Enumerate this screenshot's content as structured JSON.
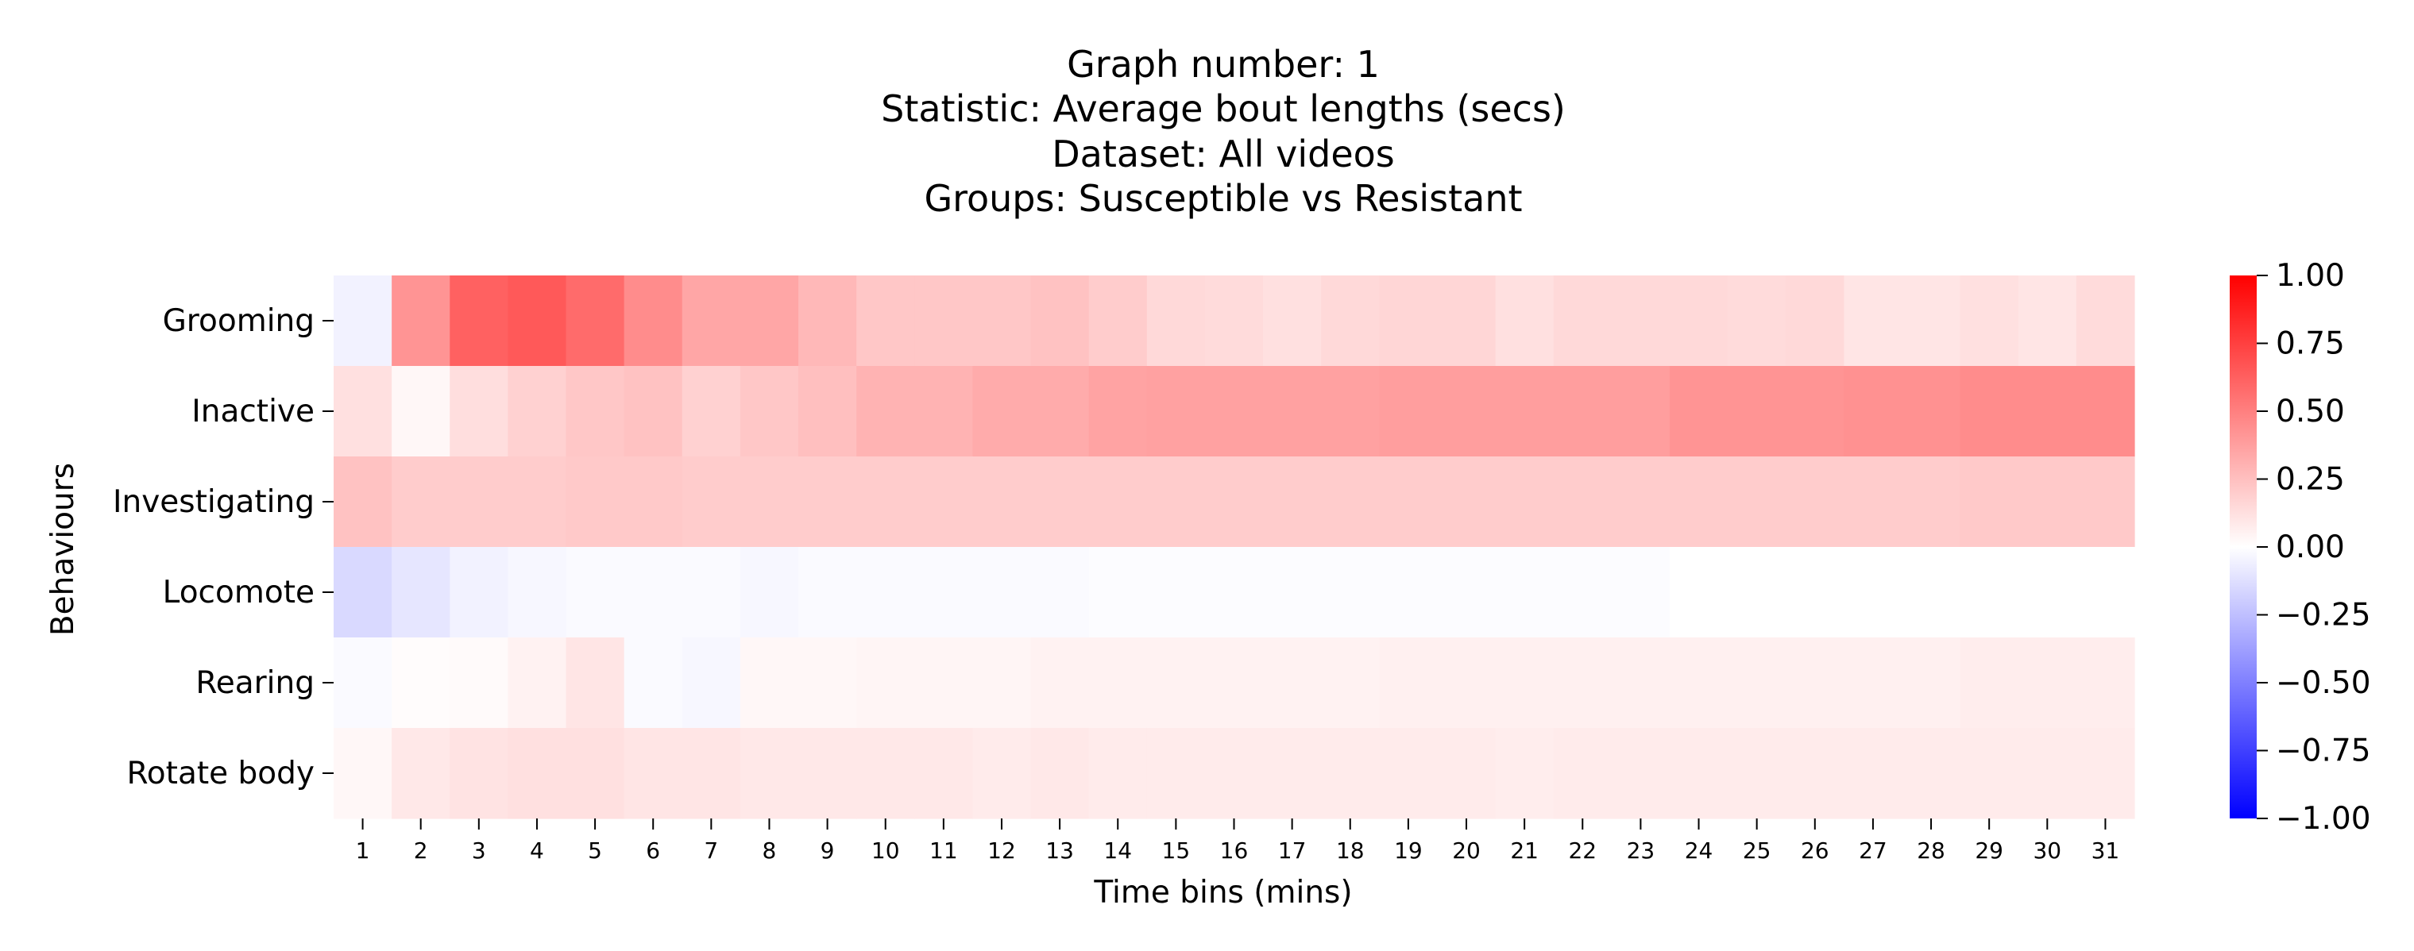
{
  "chart_data": {
    "type": "heatmap",
    "title_lines": [
      "Graph number: 1",
      "Statistic: Average bout lengths (secs)",
      "Dataset: All videos",
      "Groups: Susceptible vs Resistant"
    ],
    "xlabel": "Time bins (mins)",
    "ylabel": "Behaviours",
    "x": [
      "1",
      "2",
      "3",
      "4",
      "5",
      "6",
      "7",
      "8",
      "9",
      "10",
      "11",
      "12",
      "13",
      "14",
      "15",
      "16",
      "17",
      "18",
      "19",
      "20",
      "21",
      "22",
      "23",
      "24",
      "25",
      "26",
      "27",
      "28",
      "29",
      "30",
      "31"
    ],
    "y": [
      "Grooming",
      "Inactive",
      "Investigating",
      "Locomote",
      "Rearing",
      "Rotate body"
    ],
    "values": [
      [
        -0.05,
        0.42,
        0.62,
        0.65,
        0.58,
        0.45,
        0.35,
        0.35,
        0.28,
        0.22,
        0.22,
        0.22,
        0.24,
        0.2,
        0.15,
        0.14,
        0.12,
        0.15,
        0.16,
        0.16,
        0.12,
        0.15,
        0.15,
        0.15,
        0.14,
        0.15,
        0.1,
        0.1,
        0.12,
        0.1,
        0.14
      ],
      [
        0.12,
        0.03,
        0.13,
        0.18,
        0.22,
        0.24,
        0.18,
        0.22,
        0.25,
        0.3,
        0.3,
        0.33,
        0.33,
        0.36,
        0.37,
        0.37,
        0.37,
        0.37,
        0.38,
        0.38,
        0.38,
        0.38,
        0.38,
        0.42,
        0.42,
        0.42,
        0.43,
        0.43,
        0.45,
        0.45,
        0.45
      ],
      [
        0.24,
        0.2,
        0.2,
        0.2,
        0.21,
        0.21,
        0.2,
        0.2,
        0.2,
        0.2,
        0.2,
        0.2,
        0.2,
        0.2,
        0.2,
        0.2,
        0.2,
        0.2,
        0.2,
        0.2,
        0.2,
        0.2,
        0.2,
        0.2,
        0.2,
        0.2,
        0.2,
        0.2,
        0.21,
        0.21,
        0.21
      ],
      [
        -0.15,
        -0.1,
        -0.05,
        -0.03,
        -0.02,
        -0.02,
        -0.02,
        -0.03,
        -0.02,
        -0.02,
        -0.02,
        -0.02,
        -0.02,
        -0.01,
        -0.01,
        -0.01,
        -0.01,
        -0.01,
        -0.01,
        -0.01,
        -0.01,
        -0.01,
        -0.01,
        0.0,
        0.0,
        0.0,
        0.0,
        0.0,
        0.0,
        0.0,
        0.0
      ],
      [
        -0.02,
        0.01,
        0.02,
        0.05,
        0.1,
        -0.02,
        -0.03,
        0.03,
        0.03,
        0.04,
        0.04,
        0.04,
        0.05,
        0.05,
        0.05,
        0.05,
        0.05,
        0.05,
        0.06,
        0.06,
        0.06,
        0.06,
        0.06,
        0.06,
        0.06,
        0.06,
        0.06,
        0.06,
        0.07,
        0.07,
        0.07
      ],
      [
        0.03,
        0.09,
        0.11,
        0.12,
        0.12,
        0.1,
        0.1,
        0.09,
        0.09,
        0.09,
        0.09,
        0.08,
        0.09,
        0.08,
        0.08,
        0.08,
        0.08,
        0.08,
        0.08,
        0.08,
        0.07,
        0.08,
        0.08,
        0.08,
        0.08,
        0.08,
        0.08,
        0.08,
        0.08,
        0.08,
        0.08
      ]
    ],
    "colorbar": {
      "colormap": "bwr",
      "range": [
        -1.0,
        1.0
      ],
      "ticks": [
        "1.00",
        "0.75",
        "0.50",
        "0.25",
        "0.00",
        "−0.25",
        "−0.50",
        "−0.75",
        "−1.00"
      ]
    },
    "grid": false
  }
}
